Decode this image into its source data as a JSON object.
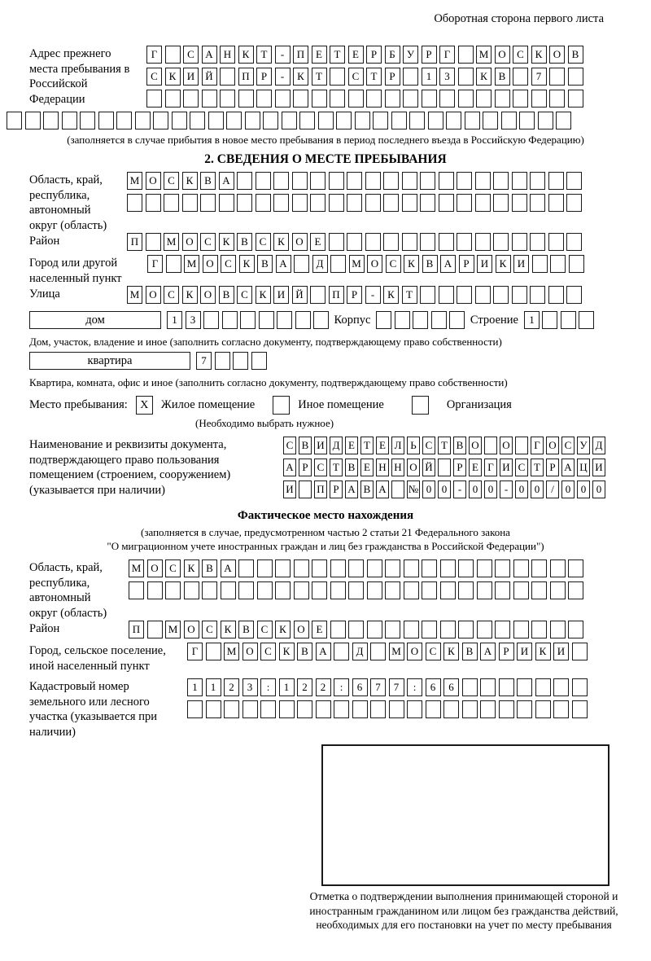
{
  "header": {
    "note": "Оборотная сторона первого листа"
  },
  "prev_address": {
    "label": "Адрес прежнего места пребывания в Российской Федерации",
    "rows": [
      {
        "text": "Г САНКТ-ПЕТЕРБУРГ МОСКОВ",
        "len": 24
      },
      {
        "text": "СКИЙ ПР-КТ СТР 13 КВ 7",
        "len": 24
      },
      {
        "text": "",
        "len": 24
      }
    ],
    "extra_row": {
      "text": "",
      "len": 31
    },
    "note": "(заполняется в случае прибытия в новое место пребывания в период последнего въезда в Российскую Федерацию)"
  },
  "section2": {
    "title": "2. СВЕДЕНИЯ О МЕСТЕ ПРЕБЫВАНИЯ",
    "region": {
      "label": "Область, край, республика, автономный округ (область)",
      "rows": [
        {
          "text": "МОСКВА",
          "len": 25
        },
        {
          "text": "",
          "len": 25
        }
      ]
    },
    "district": {
      "label": "Район",
      "rows": [
        {
          "text": "П МОСКВСКОЕ",
          "len": 25
        }
      ]
    },
    "city": {
      "label": "Город или другой населенный пункт",
      "rows": [
        {
          "text": "Г МОСКВА Д МОСКВАРИКИ",
          "len": 24
        }
      ]
    },
    "street": {
      "label": "Улица",
      "rows": [
        {
          "text": "МОСКОВСКИЙ ПР-КТ",
          "len": 25
        }
      ]
    },
    "house": {
      "box_label": "дом",
      "cells": {
        "text": "13",
        "len": 9
      },
      "korpus_label": "Корпус",
      "korpus_cells": {
        "text": "",
        "len": 5
      },
      "stroenie_label": "Строение",
      "stroenie_cells": {
        "text": "1",
        "len": 4
      },
      "note": "Дом, участок, владение и иное (заполнить согласно документу, подтверждающему право собственности)"
    },
    "apartment": {
      "box_label": "квартира",
      "cells": {
        "text": "7",
        "len": 4
      },
      "note": "Квартира, комната, офис и иное (заполнить согласно документу, подтверждающему право собственности)"
    },
    "stay_type": {
      "label": "Место пребывания:",
      "options": [
        {
          "label": "Жилое помещение",
          "mark": "X"
        },
        {
          "label": "Иное помещение",
          "mark": ""
        },
        {
          "label": "Организация",
          "mark": ""
        }
      ],
      "note": "(Необходимо выбрать нужное)"
    },
    "document": {
      "label": "Наименование и реквизиты документа, подтверждающего право пользования помещением (строением, сооружением) (указывается при наличии)",
      "rows": [
        {
          "text": "СВИДЕТЕЛЬСТВО О ГОСУД",
          "len": 21
        },
        {
          "text": "АРСТВЕННОЙ РЕГИСТРАЦИ",
          "len": 21
        },
        {
          "text": "И ПРАВА №00-00-00/000",
          "len": 21
        }
      ]
    }
  },
  "actual_location": {
    "title": "Фактическое место нахождения",
    "note_line1": "(заполняется в случае, предусмотренном частью 2 статьи 21 Федерального закона",
    "note_line2": "\"О миграционном учете иностранных граждан и лиц без гражданства в Российской Федерации\")",
    "region": {
      "label": "Область, край, республика, автономный округ (область)",
      "rows": [
        {
          "text": "МОСКВА",
          "len": 25
        },
        {
          "text": "",
          "len": 25
        }
      ]
    },
    "district": {
      "label": "Район",
      "rows": [
        {
          "text": "П МОСКВСКОЕ",
          "len": 25
        }
      ]
    },
    "city": {
      "label": "Город, сельское поселение, иной населенный пункт",
      "rows": [
        {
          "text": "Г МОСКВА Д МОСКВАРИКИ",
          "len": 22
        }
      ]
    },
    "cadastre": {
      "label": "Кадастровый номер земельного или лесного участка (указывается при наличии)",
      "rows": [
        {
          "text": "1123:122:677:66",
          "len": 22
        },
        {
          "text": "",
          "len": 22
        }
      ]
    },
    "stamp_note": "Отметка о подтверждении выполнения принимающей стороной и иностранным гражданином или лицом без гражданства действий, необходимых для его постановки на учет по месту пребывания"
  }
}
